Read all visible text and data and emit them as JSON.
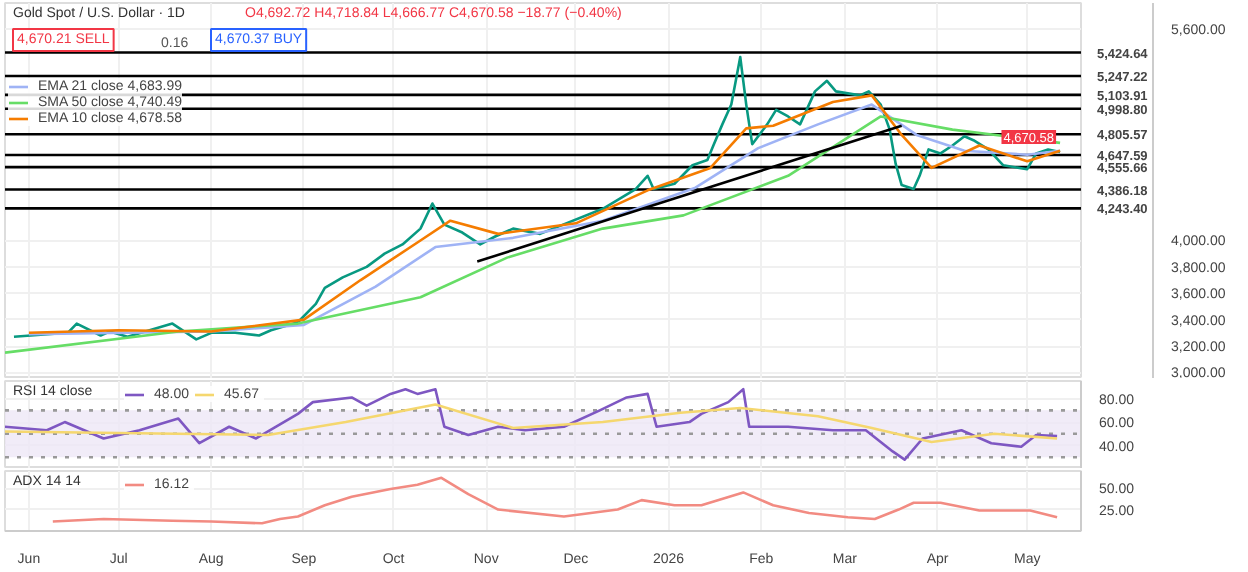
{
  "chart_data": [
    {
      "type": "line",
      "title": "Gold Spot / U.S. Dollar · 1D",
      "annotations": [
        "O4,692.72 H4,718.84 L4,666.77 C4,670.58 −18.77 (−0.40%)",
        "4,670.21 SELL",
        "0.16",
        "4,670.37 BUY",
        {
          "text": "4,670.58",
          "x": "2026-05-12",
          "y": 4670
        }
      ],
      "xlim": [
        "2025-05-24",
        "2026-05-19"
      ],
      "xticks": [
        {
          "value": "2025-06-01",
          "label": null
        },
        {
          "value": "2025-07-01",
          "label": null
        },
        {
          "value": "2025-08-01",
          "label": null
        },
        {
          "value": "2025-09-01",
          "label": null
        },
        {
          "value": "2025-10-01",
          "label": null
        },
        {
          "value": "2025-11-01",
          "label": null
        },
        {
          "value": "2025-12-01",
          "label": null
        },
        {
          "value": "2026-01-01",
          "label": null
        },
        {
          "value": "2026-02-01",
          "label": null
        },
        {
          "value": "2026-03-01",
          "label": null
        },
        {
          "value": "2026-04-01",
          "label": null
        },
        {
          "value": "2026-05-01",
          "label": null
        }
      ],
      "ylim": [
        2950,
        5800
      ],
      "yticks": [
        {
          "value": 3000,
          "label": "3,000.00"
        },
        {
          "value": 3200,
          "label": "3,200.00"
        },
        {
          "value": 3400,
          "label": "3,400.00"
        },
        {
          "value": 3600,
          "label": "3,600.00"
        },
        {
          "value": 3800,
          "label": "3,800.00"
        },
        {
          "value": 4000,
          "label": "4,000.00"
        },
        {
          "value": 5600,
          "label": "5,600.00"
        }
      ],
      "tick_labels": "y",
      "grid": true,
      "legend": "top left",
      "series": [
        {
          "color": "#089981",
          "x": [
            "2025-05-27",
            "2025-06-14",
            "2025-06-17",
            "2025-06-25",
            "2025-06-28",
            "2025-07-04",
            "2025-07-19",
            "2025-07-27",
            "2025-08-01",
            "2025-08-09",
            "2025-08-17",
            "2025-08-21",
            "2025-08-30",
            "2025-09-05",
            "2025-09-08",
            "2025-09-14",
            "2025-09-22",
            "2025-09-28",
            "2025-10-04",
            "2025-10-10",
            "2025-10-14",
            "2025-10-18",
            "2025-10-24",
            "2025-10-30",
            "2025-11-04",
            "2025-11-10",
            "2025-11-19",
            "2025-12-10",
            "2025-12-21",
            "2025-12-25",
            "2025-12-27",
            "2026-01-03",
            "2026-01-09",
            "2026-01-14",
            "2026-01-16",
            "2026-01-19",
            "2026-01-22",
            "2026-01-25",
            "2026-01-27",
            "2026-01-29",
            "2026-02-03",
            "2026-02-06",
            "2026-02-10",
            "2026-02-14",
            "2026-02-19",
            "2026-02-23",
            "2026-02-26",
            "2026-03-06",
            "2026-03-09",
            "2026-03-13",
            "2026-03-16",
            "2026-03-18",
            "2026-03-20",
            "2026-03-24",
            "2026-03-26",
            "2026-03-29",
            "2026-04-02",
            "2026-04-06",
            "2026-04-10",
            "2026-04-13",
            "2026-04-18",
            "2026-04-23",
            "2026-05-01",
            "2026-05-04",
            "2026-05-08",
            "2026-05-12"
          ],
          "values": [
            3270,
            3300,
            3370,
            3280,
            3310,
            3270,
            3370,
            3250,
            3300,
            3300,
            3280,
            3320,
            3380,
            3520,
            3640,
            3720,
            3800,
            3900,
            3970,
            4090,
            4280,
            4120,
            4060,
            3970,
            4030,
            4090,
            4050,
            4240,
            4390,
            4490,
            4390,
            4430,
            4570,
            4610,
            4720,
            4880,
            5030,
            5390,
            5030,
            4730,
            4880,
            4990,
            4940,
            4880,
            5130,
            5210,
            5130,
            5100,
            5130,
            5030,
            4840,
            4580,
            4420,
            4390,
            4490,
            4690,
            4660,
            4720,
            4790,
            4760,
            4690,
            4570,
            4540,
            4660,
            4690,
            4670
          ]
        },
        {
          "name": "EMA 21 close 4,683.99",
          "color": "#9fb3f5",
          "x": [
            "2025-06-01",
            "2025-08-01",
            "2025-09-01",
            "2025-09-25",
            "2025-10-15",
            "2025-11-10",
            "2025-12-10",
            "2026-01-10",
            "2026-01-31",
            "2026-02-20",
            "2026-03-10",
            "2026-03-25",
            "2026-04-10",
            "2026-05-01",
            "2026-05-12"
          ],
          "values": [
            3290,
            3310,
            3360,
            3650,
            3950,
            4020,
            4150,
            4400,
            4700,
            4880,
            5030,
            4800,
            4680,
            4650,
            4680
          ]
        },
        {
          "name": "SMA 50 close 4,740.49",
          "color": "#66dd66",
          "x": [
            "2025-05-24",
            "2025-07-21",
            "2025-08-30",
            "2025-10-10",
            "2025-11-08",
            "2025-12-10",
            "2026-01-06",
            "2026-02-10",
            "2026-03-13",
            "2026-04-06",
            "2026-05-12"
          ],
          "values": [
            3150,
            3310,
            3370,
            3570,
            3870,
            4090,
            4190,
            4490,
            4940,
            4840,
            4740
          ]
        },
        {
          "name": "EMA 10 close 4,678.58",
          "color": "#f57c00",
          "x": [
            "2025-06-01",
            "2025-07-01",
            "2025-08-01",
            "2025-09-01",
            "2025-09-20",
            "2025-10-10",
            "2025-10-20",
            "2025-11-05",
            "2025-12-01",
            "2025-12-25",
            "2026-01-15",
            "2026-01-27",
            "2026-02-05",
            "2026-02-25",
            "2026-03-10",
            "2026-03-20",
            "2026-03-30",
            "2026-04-15",
            "2026-05-01",
            "2026-05-12"
          ],
          "values": [
            3300,
            3320,
            3310,
            3400,
            3700,
            4000,
            4150,
            4050,
            4130,
            4380,
            4550,
            4850,
            4870,
            5050,
            5100,
            4800,
            4550,
            4720,
            4600,
            4680
          ]
        },
        {
          "color": "#000000",
          "x": [
            "2025-10-29",
            "2026-03-20"
          ],
          "values": [
            3840,
            4870
          ]
        }
      ],
      "ref_lines": [
        {
          "axis": "y",
          "value": 5424.64,
          "label": "5,424.64",
          "color": "#000000"
        },
        {
          "axis": "y",
          "value": 5247.22,
          "label": "5,247.22",
          "color": "#000000"
        },
        {
          "axis": "y",
          "value": 5103.91,
          "label": "5,103.91",
          "color": "#000000"
        },
        {
          "axis": "y",
          "value": 4998.8,
          "label": "4,998.80",
          "color": "#000000"
        },
        {
          "axis": "y",
          "value": 4805.57,
          "label": "4,805.57",
          "color": "#000000"
        },
        {
          "axis": "y",
          "value": 4647.59,
          "label": "4,647.59",
          "color": "#000000"
        },
        {
          "axis": "y",
          "value": 4555.66,
          "label": "4,555.66",
          "color": "#000000"
        },
        {
          "axis": "y",
          "value": 4386.18,
          "label": "4,386.18",
          "color": "#000000"
        },
        {
          "axis": "y",
          "value": 4243.4,
          "label": "4,243.40",
          "color": "#000000"
        }
      ]
    },
    {
      "type": "line",
      "title": "RSI 14 close",
      "xlim": [
        "2025-05-24",
        "2026-05-19"
      ],
      "xticks": [
        {
          "value": "2025-06-01",
          "label": null
        },
        {
          "value": "2025-07-01",
          "label": null
        },
        {
          "value": "2025-08-01",
          "label": null
        },
        {
          "value": "2025-09-01",
          "label": null
        },
        {
          "value": "2025-10-01",
          "label": null
        },
        {
          "value": "2025-11-01",
          "label": null
        },
        {
          "value": "2025-12-01",
          "label": null
        },
        {
          "value": "2026-01-01",
          "label": null
        },
        {
          "value": "2026-02-01",
          "label": null
        },
        {
          "value": "2026-03-01",
          "label": null
        },
        {
          "value": "2026-04-01",
          "label": null
        },
        {
          "value": "2026-05-01",
          "label": null
        }
      ],
      "ylim": [
        20,
        95
      ],
      "yticks": [
        {
          "value": 40,
          "label": "40.00"
        },
        {
          "value": 60,
          "label": "60.00"
        },
        {
          "value": 80,
          "label": "80.00"
        }
      ],
      "tick_labels": "y",
      "grid": true,
      "legend": "top left",
      "series": [
        {
          "name": "48.00",
          "color": "#7e57c2",
          "x": [
            "2025-05-24",
            "2025-06-07",
            "2025-06-13",
            "2025-06-26",
            "2025-07-08",
            "2025-07-21",
            "2025-07-28",
            "2025-08-07",
            "2025-08-16",
            "2025-08-30",
            "2025-09-04",
            "2025-09-17",
            "2025-09-22",
            "2025-09-30",
            "2025-10-05",
            "2025-10-09",
            "2025-10-15",
            "2025-10-18",
            "2025-10-26",
            "2025-11-05",
            "2025-11-14",
            "2025-11-27",
            "2025-12-09",
            "2025-12-18",
            "2025-12-25",
            "2025-12-28",
            "2026-01-08",
            "2026-01-12",
            "2026-01-21",
            "2026-01-26",
            "2026-01-28",
            "2026-02-10",
            "2026-02-25",
            "2026-03-08",
            "2026-03-17",
            "2026-03-21",
            "2026-03-27",
            "2026-04-09",
            "2026-04-19",
            "2026-04-29",
            "2026-05-04",
            "2026-05-11"
          ],
          "values": [
            56,
            53,
            60,
            46,
            53,
            63,
            42,
            56,
            46,
            67,
            77,
            81,
            74,
            84,
            88,
            84,
            88,
            56,
            49,
            56,
            53,
            56,
            70,
            81,
            84,
            56,
            60,
            67,
            77,
            88,
            56,
            56,
            53,
            53,
            35,
            28,
            46,
            53,
            42,
            39,
            49,
            48
          ]
        },
        {
          "name": "45.67",
          "color": "#f5d76e",
          "x": [
            "2025-05-24",
            "2025-07-20",
            "2025-08-20",
            "2025-09-15",
            "2025-10-15",
            "2025-11-10",
            "2025-12-10",
            "2026-01-05",
            "2026-01-25",
            "2026-02-20",
            "2026-03-10",
            "2026-03-30",
            "2026-04-20",
            "2026-05-11"
          ],
          "values": [
            52,
            50,
            49,
            60,
            75,
            55,
            60,
            68,
            72,
            65,
            55,
            43,
            50,
            46
          ]
        }
      ],
      "bands": [
        {
          "axis": "y",
          "from": 30,
          "to": 70,
          "color": "#ede7f6"
        }
      ],
      "ref_lines": [
        {
          "axis": "y",
          "value": 70,
          "line_style": "dotted",
          "color": "#999999"
        },
        {
          "axis": "y",
          "value": 50,
          "line_style": "dotted",
          "color": "#999999"
        },
        {
          "axis": "y",
          "value": 30,
          "line_style": "dotted",
          "color": "#999999"
        }
      ]
    },
    {
      "type": "line",
      "title": "ADX 14 14",
      "xlim": [
        "2025-05-24",
        "2026-05-19"
      ],
      "xticks": [
        {
          "value": "2025-06-01",
          "label": "Jun"
        },
        {
          "value": "2025-07-01",
          "label": "Jul"
        },
        {
          "value": "2025-08-01",
          "label": "Aug"
        },
        {
          "value": "2025-09-01",
          "label": "Sep"
        },
        {
          "value": "2025-10-01",
          "label": "Oct"
        },
        {
          "value": "2025-11-01",
          "label": "Nov"
        },
        {
          "value": "2025-12-01",
          "label": "Dec"
        },
        {
          "value": "2026-01-01",
          "label": "2026"
        },
        {
          "value": "2026-02-01",
          "label": "Feb"
        },
        {
          "value": "2026-03-01",
          "label": "Mar"
        },
        {
          "value": "2026-04-01",
          "label": "Apr"
        },
        {
          "value": "2026-05-01",
          "label": "May"
        }
      ],
      "ylim": [
        0,
        70
      ],
      "yticks": [
        {
          "value": 25,
          "label": "25.00"
        },
        {
          "value": 50,
          "label": "50.00"
        }
      ],
      "grid": true,
      "legend": "top left",
      "series": [
        {
          "name": "16.12",
          "color": "#f28b82",
          "x": [
            "2025-06-09",
            "2025-06-26",
            "2025-07-19",
            "2025-08-01",
            "2025-08-18",
            "2025-08-24",
            "2025-08-30",
            "2025-09-08",
            "2025-09-17",
            "2025-09-30",
            "2025-10-09",
            "2025-10-17",
            "2025-10-26",
            "2025-11-05",
            "2025-11-27",
            "2025-12-15",
            "2025-12-23",
            "2026-01-03",
            "2026-01-12",
            "2026-01-26",
            "2026-02-05",
            "2026-02-17",
            "2026-03-02",
            "2026-03-11",
            "2026-03-19",
            "2026-03-24",
            "2026-04-02",
            "2026-04-15",
            "2026-05-02",
            "2026-05-11"
          ],
          "values": [
            11,
            14,
            12,
            11,
            9,
            14,
            17,
            30,
            40,
            49,
            54,
            62,
            43,
            25,
            17,
            25,
            36,
            30,
            30,
            45,
            30,
            21,
            16,
            14,
            25,
            33,
            33,
            24,
            24,
            16
          ]
        }
      ]
    }
  ]
}
